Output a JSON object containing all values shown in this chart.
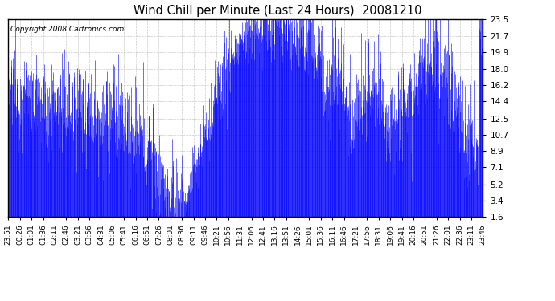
{
  "title": "Wind Chill per Minute (Last 24 Hours)  20081210",
  "copyright_text": "Copyright 2008 Cartronics.com",
  "yticks": [
    1.6,
    3.4,
    5.2,
    7.1,
    8.9,
    10.7,
    12.5,
    14.4,
    16.2,
    18.0,
    19.9,
    21.7,
    23.5
  ],
  "ymin": 1.6,
  "ymax": 23.5,
  "line_color": "#0000FF",
  "bg_color": "#FFFFFF",
  "grid_color": "#BBBBBB",
  "xtick_labels": [
    "23:51",
    "00:26",
    "01:01",
    "01:36",
    "02:11",
    "02:46",
    "03:21",
    "03:56",
    "04:31",
    "05:06",
    "05:41",
    "06:16",
    "06:51",
    "07:26",
    "08:01",
    "08:36",
    "09:11",
    "09:46",
    "10:21",
    "10:56",
    "11:31",
    "12:06",
    "12:41",
    "13:16",
    "13:51",
    "14:26",
    "15:01",
    "15:36",
    "16:11",
    "16:46",
    "17:21",
    "17:56",
    "18:31",
    "19:06",
    "19:41",
    "20:16",
    "20:51",
    "21:26",
    "22:01",
    "22:36",
    "23:11",
    "23:46"
  ],
  "num_points": 1440,
  "seed": 12345
}
